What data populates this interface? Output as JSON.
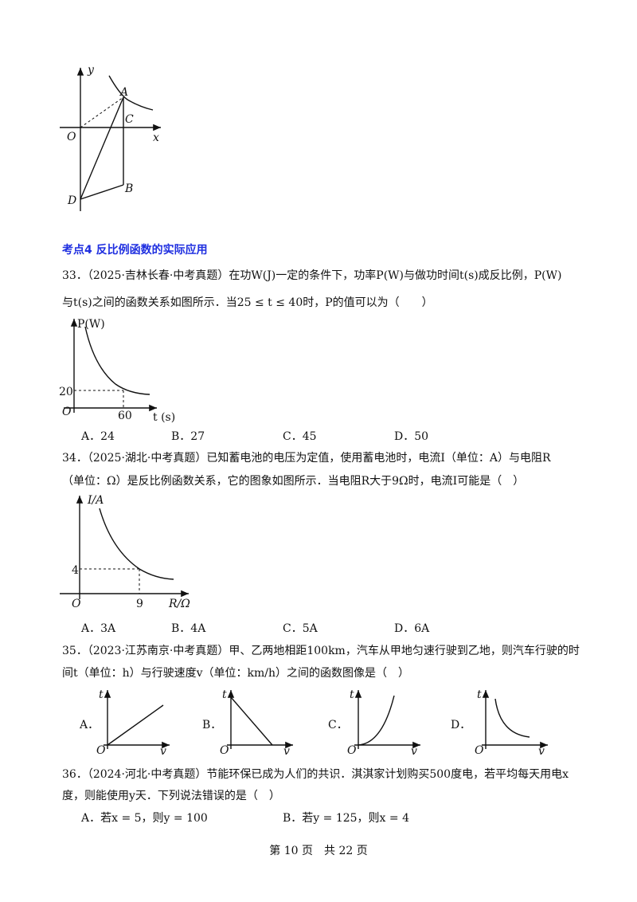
{
  "figure_top": {
    "labels": [
      "y",
      "A",
      "C",
      "O",
      "x",
      "D",
      "B"
    ]
  },
  "section_title": "考点4 反比例函数的实际应用",
  "questions": [
    {
      "lines": [
        "33．（2025·吉林长春·中考真题）在功W(J)一定的条件下，功率P(W)与做功时间t(s)成反比例，P(W)",
        "与t(s)之间的函数关系如图所示．当25 ≤ t ≤ 40时，P的值可以为（　　）"
      ],
      "graph_labels": [
        "P(W)",
        "20",
        "O",
        "60",
        "t (s)"
      ],
      "options": [
        "A．24",
        "B．27",
        "C．45",
        "D．50"
      ]
    },
    {
      "lines": [
        "34．（2025·湖北·中考真题）已知蓄电池的电压为定值，使用蓄电池时，电流I（单位：A）与电阻R",
        "（单位：Ω）是反比例函数关系，它的图象如图所示．当电阻R大于9Ω时，电流I可能是（　）"
      ],
      "graph_labels": [
        "I/A",
        "4",
        "O",
        "9",
        "R/Ω"
      ],
      "options": [
        "A．3A",
        "B．4A",
        "C．5A",
        "D．6A"
      ]
    },
    {
      "lines": [
        "35．（2023·江苏南京·中考真题）甲、乙两地相距100km，汽车从甲地匀速行驶到乙地，则汽车行驶的时",
        "间t（单位：h）与行驶速度v（单位：km/h）之间的函数图像是（　）"
      ],
      "options": [
        {
          "letter": "A．",
          "axis_labels": [
            "t",
            "O",
            "v"
          ]
        },
        {
          "letter": "B．",
          "axis_labels": [
            "t",
            "O",
            "v"
          ]
        },
        {
          "letter": "C．",
          "axis_labels": [
            "t",
            "O",
            "v"
          ]
        },
        {
          "letter": "D．",
          "axis_labels": [
            "t",
            "O",
            "v"
          ]
        }
      ]
    },
    {
      "lines": [
        "36．（2024·河北·中考真题）节能环保已成为人们的共识．淇淇家计划购买500度电，若平均每天用电x",
        "度，则能使用y天．下列说法错误的是（　）"
      ],
      "options": [
        "A．若x = 5，则y = 100",
        "B．若y = 125，则x = 4"
      ]
    }
  ],
  "footer": "第 10 页　共 22 页"
}
